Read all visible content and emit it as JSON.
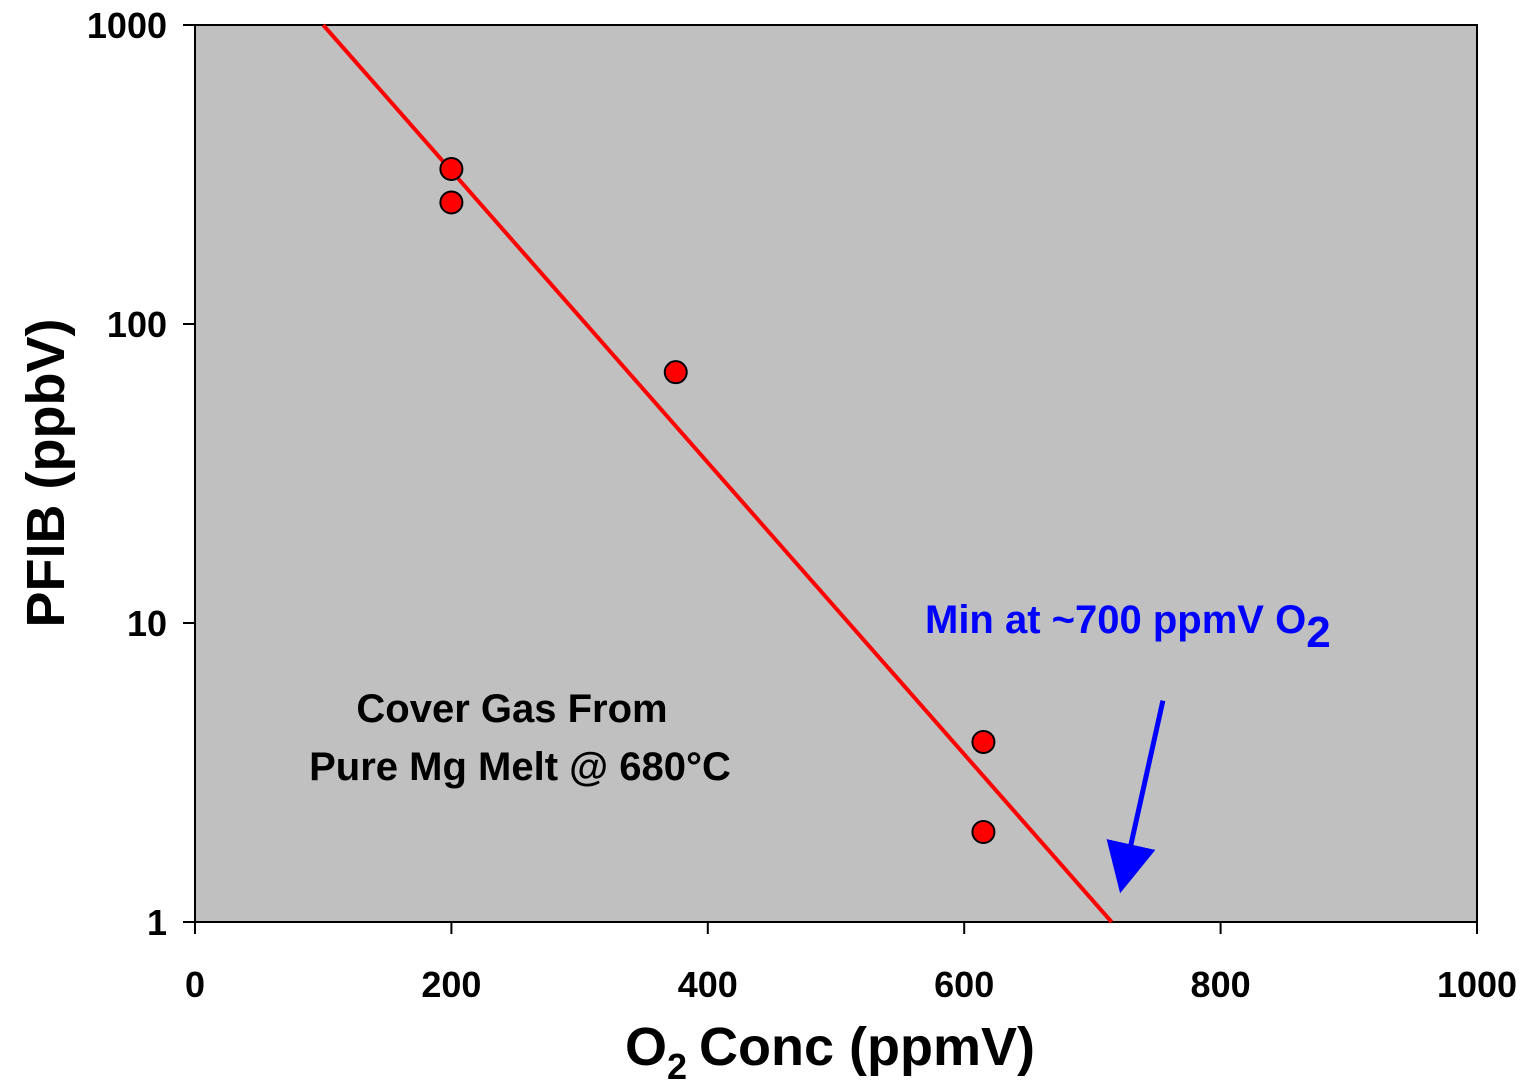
{
  "chart_data": {
    "type": "scatter",
    "xlabel": "Conc (ppmV)",
    "xlabel_prefix": "O",
    "xlabel_subscript": "2",
    "ylabel": "PFIB (ppbV)",
    "xlim": [
      0,
      1000
    ],
    "ylim": [
      1,
      1000
    ],
    "yscale": "log",
    "grid": false,
    "plot_background": "#c0c0c0",
    "x_ticks": [
      "0",
      "200",
      "400",
      "600",
      "800",
      "1000"
    ],
    "y_ticks": [
      "1",
      "10",
      "100",
      "1000"
    ],
    "points": [
      {
        "x": 200,
        "y": 330
      },
      {
        "x": 200,
        "y": 255
      },
      {
        "x": 375,
        "y": 69
      },
      {
        "x": 615,
        "y": 4.0
      },
      {
        "x": 615,
        "y": 2.0
      }
    ],
    "point_color": "#ff0000",
    "fit_line": {
      "x": [
        100,
        715
      ],
      "y": [
        1000,
        1
      ],
      "color": "#ff0000"
    },
    "annotation_1": {
      "line1": "Cover Gas From",
      "line2": "Pure Mg Melt @ 680°C"
    },
    "annotation_2": {
      "text": "Min at ~700 ppmV O",
      "subscript": "2",
      "color": "#0000ff",
      "arrow_from": {
        "x": 755,
        "y": 5.5
      },
      "arrow_to": {
        "x": 725,
        "y": 1.45
      }
    }
  }
}
